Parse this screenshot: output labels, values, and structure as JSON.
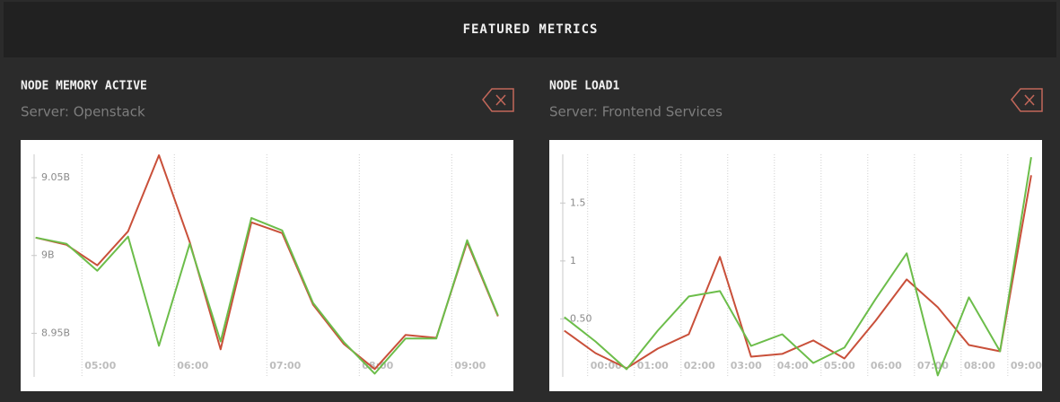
{
  "header": {
    "title": "FEATURED METRICS"
  },
  "chart_data": [
    {
      "type": "line",
      "title": "NODE MEMORY ACTIVE",
      "subtitle": "Server: Openstack",
      "x": [
        270,
        290,
        310,
        330,
        350,
        370,
        390,
        410,
        430,
        450,
        470,
        490,
        510,
        530,
        550,
        570
      ],
      "series": [
        {
          "color": "#c9503a",
          "values": [
            9011500000,
            9006900000,
            8993700000,
            9015500000,
            9064400000,
            9008600000,
            8939700000,
            9021300000,
            9014400000,
            8968400000,
            8943100000,
            8927000000,
            8948900000,
            8947100000,
            9008600000,
            8960900000
          ]
        },
        {
          "color": "#6cbd4a",
          "values": [
            9011500000,
            9007500000,
            8990200000,
            9012100000,
            8942000000,
            9007500000,
            8944800000,
            9024100000,
            9016100000,
            8969500000,
            8944300000,
            8924100000,
            8946600000,
            8946600000,
            9009800000,
            8961500000
          ]
        }
      ],
      "xlim": [
        269,
        580
      ],
      "ylim": [
        8922000000,
        9065000000
      ],
      "xticks": [
        {
          "value": 300,
          "label": "05:00"
        },
        {
          "value": 360,
          "label": "06:00"
        },
        {
          "value": 420,
          "label": "07:00"
        },
        {
          "value": 480,
          "label": "08:00"
        },
        {
          "value": 540,
          "label": "09:00"
        }
      ],
      "yticks": [
        {
          "value": 8950000000,
          "label": "8.95B"
        },
        {
          "value": 9000000000,
          "label": "9B"
        },
        {
          "value": 9050000000,
          "label": "9.05B"
        }
      ],
      "grid": "x"
    },
    {
      "type": "line",
      "title": "NODE LOAD1",
      "subtitle": "Server: Frontend Services",
      "x": [
        -30,
        10,
        50,
        90,
        130,
        170,
        210,
        250,
        290,
        330,
        370,
        410,
        450,
        490,
        530,
        570
      ],
      "series": [
        {
          "color": "#c9503a",
          "values": [
            0.399,
            0.205,
            0.074,
            0.244,
            0.368,
            1.035,
            0.174,
            0.198,
            0.314,
            0.159,
            0.484,
            0.841,
            0.601,
            0.275,
            0.221,
            1.74
          ]
        },
        {
          "color": "#6cbd4a",
          "values": [
            0.516,
            0.306,
            0.066,
            0.399,
            0.694,
            0.74,
            0.267,
            0.368,
            0.12,
            0.252,
            0.671,
            1.066,
            0.012,
            0.686,
            0.221,
            1.895
          ]
        }
      ],
      "xlim": [
        -32,
        584
      ],
      "ylim": [
        0,
        1.92
      ],
      "xticks": [
        {
          "value": 0,
          "label": "00:00"
        },
        {
          "value": 60,
          "label": "01:00"
        },
        {
          "value": 120,
          "label": "02:00"
        },
        {
          "value": 180,
          "label": "03:00"
        },
        {
          "value": 240,
          "label": "04:00"
        },
        {
          "value": 300,
          "label": "05:00"
        },
        {
          "value": 360,
          "label": "06:00"
        },
        {
          "value": 420,
          "label": "07:00"
        },
        {
          "value": 480,
          "label": "08:00"
        },
        {
          "value": 540,
          "label": "09:00"
        }
      ],
      "yticks": [
        {
          "value": 0.5,
          "label": "0.50"
        },
        1,
        1.5
      ],
      "grid": "x"
    }
  ]
}
